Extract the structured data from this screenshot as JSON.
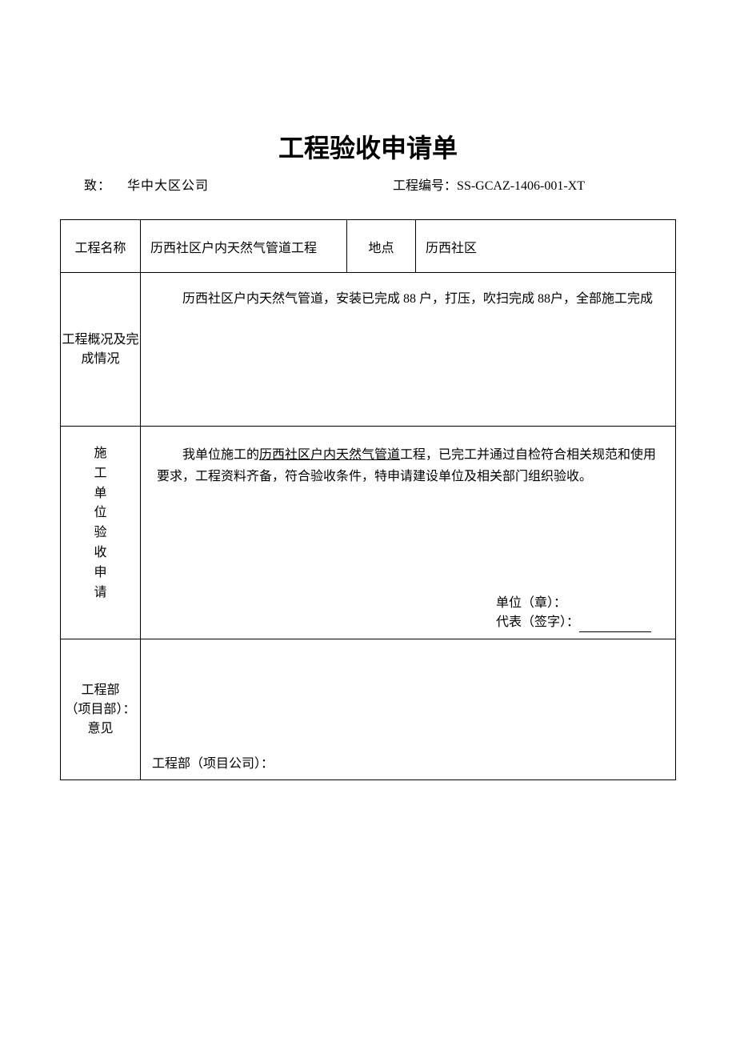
{
  "title": "工程验收申请单",
  "header": {
    "to_label": "致：",
    "to_value": "华中大区公司",
    "project_no_label": "工程编号：",
    "project_no_value": "SS-GCAZ-1406-001-XT"
  },
  "row1": {
    "name_label": "工程名称",
    "name_value": "历西社区户内天然气管道工程",
    "location_label": "地点",
    "location_value": "历西社区"
  },
  "row2": {
    "label": "工程概况及完成情况",
    "content": "历西社区户内天然气管道，安装已完成 88 户，打压，吹扫完成 88户，全部施工完成"
  },
  "row3": {
    "label": "施工单位验收申请",
    "text_prefix": "我单位施工的",
    "text_underline": "历西社区户内天然气管道",
    "text_suffix": "工程，已完工并通过自检符合相关规范和使用要求，工程资料齐备，符合验收条件，特申请建设单位及相关部门组织验收。",
    "stamp_label": "单位（章）：",
    "sign_label": "代表（签字）："
  },
  "row4": {
    "label_line1": "工程部",
    "label_line2": "（项目部）：",
    "label_line3": "意见",
    "content": "工程部（项目公司）："
  },
  "colors": {
    "background": "#ffffff",
    "border": "#000000",
    "text": "#000000"
  }
}
